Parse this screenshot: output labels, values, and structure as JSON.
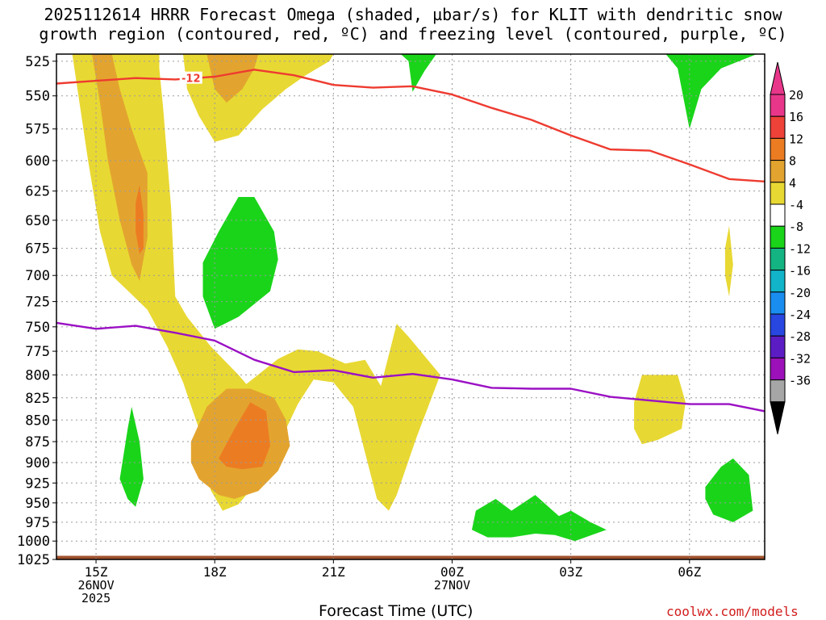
{
  "title_line1": "2025112614 HRRR Forecast Omega (shaded, µbar/s) for KLIT with dendritic snow",
  "title_line2": "growth region (contoured, red, ºC) and freezing level (contoured, purple, ºC)",
  "credit": "coolwx.com/models",
  "chart_data": {
    "type": "contour",
    "title": "2025112614 HRRR Forecast Omega (shaded, µbar/s) for KLIT with dendritic snow growth region (contoured, red, ºC) and freezing level (contoured, purple, ºC)",
    "xlabel": "Forecast Time (UTC)",
    "ylabel": "",
    "x_ticks": [
      {
        "label": "15Z",
        "sub": [
          "26NOV",
          "2025"
        ],
        "x": 15
      },
      {
        "label": "18Z",
        "sub": [],
        "x": 18
      },
      {
        "label": "21Z",
        "sub": [],
        "x": 21
      },
      {
        "label": "00Z",
        "sub": [
          "27NOV"
        ],
        "x": 24
      },
      {
        "label": "03Z",
        "sub": [],
        "x": 27
      },
      {
        "label": "06Z",
        "sub": [],
        "x": 30
      }
    ],
    "xlim": [
      14,
      31.9
    ],
    "y_ticks": [
      "525",
      "550",
      "575",
      "600",
      "625",
      "650",
      "675",
      "700",
      "725",
      "750",
      "775",
      "800",
      "825",
      "850",
      "875",
      "900",
      "925",
      "950",
      "975",
      "1000",
      "1025"
    ],
    "ylim": [
      1025,
      520
    ],
    "y_scale": "log-pressure",
    "grid": true,
    "colorbar": {
      "labels": [
        "20",
        "16",
        "12",
        "8",
        "4",
        "-4",
        "-8",
        "-12",
        "-16",
        "-20",
        "-24",
        "-28",
        "-32",
        "-36"
      ],
      "colors": [
        "#e8368a",
        "#ee4138",
        "#ec7c22",
        "#e3a42f",
        "#e8d833",
        "#ffffff",
        "#1ad41a",
        "#14b482",
        "#11b4c8",
        "#1a8ef0",
        "#2846e0",
        "#5b1cc4",
        "#9b10b8",
        "#a6a6a6"
      ]
    },
    "snow_growth_line": {
      "name": "-12",
      "color": "#ee3b30",
      "points": [
        [
          14,
          541
        ],
        [
          15,
          539
        ],
        [
          16,
          537
        ],
        [
          17,
          538
        ],
        [
          18,
          536
        ],
        [
          19,
          531
        ],
        [
          20,
          535
        ],
        [
          21,
          542
        ],
        [
          22,
          544
        ],
        [
          23,
          543
        ],
        [
          24,
          549
        ],
        [
          25,
          559
        ],
        [
          26,
          568
        ],
        [
          27,
          580
        ],
        [
          28,
          591
        ],
        [
          29,
          592
        ],
        [
          30,
          603
        ],
        [
          31,
          615
        ],
        [
          31.9,
          617
        ]
      ]
    },
    "freezing_level_line": {
      "color": "#9b10c4",
      "points": [
        [
          14,
          746
        ],
        [
          15,
          752
        ],
        [
          16,
          749
        ],
        [
          17,
          756
        ],
        [
          18,
          764
        ],
        [
          19,
          784
        ],
        [
          20,
          797
        ],
        [
          21,
          795
        ],
        [
          22,
          803
        ],
        [
          23,
          799
        ],
        [
          24,
          805
        ],
        [
          25,
          814
        ],
        [
          26,
          815
        ],
        [
          27,
          815
        ],
        [
          28,
          824
        ],
        [
          29,
          828
        ],
        [
          30,
          832
        ],
        [
          31,
          832
        ],
        [
          31.9,
          840
        ]
      ]
    },
    "shaded_regions": [
      {
        "value": 4,
        "color": "#e8d833",
        "points": [
          [
            14.4,
            520
          ],
          [
            14.8,
            600
          ],
          [
            15.1,
            660
          ],
          [
            15.4,
            700
          ],
          [
            15.9,
            718
          ],
          [
            16.3,
            733
          ],
          [
            16.8,
            770
          ],
          [
            17.2,
            808
          ],
          [
            17.6,
            860
          ],
          [
            17.9,
            934
          ],
          [
            18.2,
            960
          ],
          [
            18.6,
            952
          ],
          [
            19.1,
            922
          ],
          [
            19.6,
            880
          ],
          [
            20.1,
            832
          ],
          [
            20.5,
            805
          ],
          [
            21,
            808
          ],
          [
            21.5,
            835
          ],
          [
            22.1,
            945
          ],
          [
            22.4,
            960
          ],
          [
            22.6,
            940
          ],
          [
            23.1,
            870
          ],
          [
            23.7,
            800
          ],
          [
            22.9,
            760
          ],
          [
            22.6,
            747
          ],
          [
            22.2,
            812
          ],
          [
            21.8,
            784
          ],
          [
            21.3,
            788
          ],
          [
            20.6,
            775
          ],
          [
            20.1,
            773
          ],
          [
            19.6,
            783
          ],
          [
            18.8,
            810
          ],
          [
            18.6,
            800
          ],
          [
            17.9,
            770
          ],
          [
            17.3,
            740
          ],
          [
            17,
            720
          ],
          [
            16.9,
            640
          ],
          [
            16.7,
            560
          ],
          [
            16.6,
            530
          ],
          [
            16.6,
            520
          ]
        ]
      },
      {
        "value": 4,
        "color": "#e8d833",
        "points": [
          [
            17.2,
            520
          ],
          [
            17.3,
            545
          ],
          [
            17.6,
            565
          ],
          [
            18,
            585
          ],
          [
            18.6,
            580
          ],
          [
            19.2,
            560
          ],
          [
            19.8,
            545
          ],
          [
            20.3,
            535
          ],
          [
            20.9,
            525
          ],
          [
            21,
            520
          ]
        ]
      },
      {
        "value": 4,
        "color": "#e8d833",
        "points": [
          [
            28.8,
            800
          ],
          [
            29.7,
            800
          ],
          [
            29.9,
            830
          ],
          [
            29.8,
            860
          ],
          [
            29.2,
            873
          ],
          [
            28.8,
            878
          ],
          [
            28.6,
            860
          ],
          [
            28.6,
            830
          ]
        ]
      },
      {
        "value": 4,
        "color": "#e8d833",
        "points": [
          [
            31,
            655
          ],
          [
            31.1,
            690
          ],
          [
            31,
            720
          ],
          [
            30.9,
            700
          ],
          [
            30.9,
            675
          ]
        ]
      },
      {
        "value": 8,
        "color": "#e3a42f",
        "points": [
          [
            14.9,
            520
          ],
          [
            15.1,
            555
          ],
          [
            15.3,
            600
          ],
          [
            15.6,
            650
          ],
          [
            15.9,
            690
          ],
          [
            16.1,
            705
          ],
          [
            16.3,
            665
          ],
          [
            16.3,
            610
          ],
          [
            15.9,
            575
          ],
          [
            15.6,
            545
          ],
          [
            15.4,
            520
          ]
        ]
      },
      {
        "value": 8,
        "color": "#e3a42f",
        "points": [
          [
            17.4,
            875
          ],
          [
            17.8,
            835
          ],
          [
            18.3,
            815
          ],
          [
            18.9,
            815
          ],
          [
            19.5,
            825
          ],
          [
            19.8,
            850
          ],
          [
            19.9,
            880
          ],
          [
            19.6,
            910
          ],
          [
            19.1,
            935
          ],
          [
            18.5,
            945
          ],
          [
            18.1,
            940
          ],
          [
            17.6,
            920
          ],
          [
            17.4,
            900
          ]
        ]
      },
      {
        "value": 8,
        "color": "#e3a42f",
        "points": [
          [
            17.8,
            520
          ],
          [
            18,
            545
          ],
          [
            18.3,
            555
          ],
          [
            18.7,
            545
          ],
          [
            19,
            530
          ],
          [
            19.1,
            520
          ]
        ]
      },
      {
        "value": 12,
        "color": "#ec7c22",
        "points": [
          [
            16.0,
            635
          ],
          [
            16.1,
            620
          ],
          [
            16.2,
            645
          ],
          [
            16.2,
            675
          ],
          [
            16.1,
            680
          ],
          [
            16.0,
            660
          ]
        ]
      },
      {
        "value": 12,
        "color": "#ec7c22",
        "points": [
          [
            18.1,
            895
          ],
          [
            18.5,
            860
          ],
          [
            18.9,
            830
          ],
          [
            19.3,
            840
          ],
          [
            19.4,
            880
          ],
          [
            19.2,
            905
          ],
          [
            18.7,
            908
          ],
          [
            18.3,
            905
          ]
        ]
      },
      {
        "value": -4,
        "color": "#1ad41a",
        "points": [
          [
            17.7,
            688
          ],
          [
            18.1,
            660
          ],
          [
            18.6,
            630
          ],
          [
            19,
            630
          ],
          [
            19.5,
            660
          ],
          [
            19.6,
            685
          ],
          [
            19.4,
            715
          ],
          [
            18.6,
            740
          ],
          [
            18,
            752
          ],
          [
            17.7,
            720
          ]
        ]
      },
      {
        "value": -4,
        "color": "#1ad41a",
        "points": [
          [
            15.6,
            920
          ],
          [
            15.8,
            860
          ],
          [
            15.9,
            835
          ],
          [
            16.1,
            875
          ],
          [
            16.2,
            920
          ],
          [
            16,
            955
          ],
          [
            15.8,
            945
          ]
        ]
      },
      {
        "value": -4,
        "color": "#1ad41a",
        "points": [
          [
            25.5,
            960
          ],
          [
            25.8,
            950
          ],
          [
            26.1,
            940
          ],
          [
            26.7,
            967
          ],
          [
            27,
            960
          ],
          [
            27.5,
            975
          ],
          [
            27.9,
            985
          ],
          [
            27.1,
            1000
          ],
          [
            26.6,
            992
          ],
          [
            26.1,
            990
          ],
          [
            25.5,
            995
          ],
          [
            24.9,
            995
          ],
          [
            24.5,
            985
          ],
          [
            24.6,
            960
          ],
          [
            25.1,
            945
          ]
        ]
      },
      {
        "value": -4,
        "color": "#1ad41a",
        "points": [
          [
            30.4,
            930
          ],
          [
            30.8,
            905
          ],
          [
            31.1,
            895
          ],
          [
            31.5,
            915
          ],
          [
            31.6,
            960
          ],
          [
            31.1,
            975
          ],
          [
            30.6,
            965
          ],
          [
            30.4,
            945
          ]
        ]
      },
      {
        "value": -4,
        "color": "#1ad41a",
        "points": [
          [
            29.4,
            520
          ],
          [
            29.7,
            530
          ],
          [
            30,
            575
          ],
          [
            30.3,
            545
          ],
          [
            30.8,
            530
          ],
          [
            31.7,
            520
          ]
        ]
      },
      {
        "value": -4,
        "color": "#1ad41a",
        "points": [
          [
            22.7,
            520
          ],
          [
            22.9,
            525
          ],
          [
            23.0,
            547
          ],
          [
            23.3,
            532
          ],
          [
            23.6,
            520
          ]
        ]
      }
    ],
    "terrain": {
      "color": "#a0522d",
      "from_pressure": 1020
    }
  }
}
